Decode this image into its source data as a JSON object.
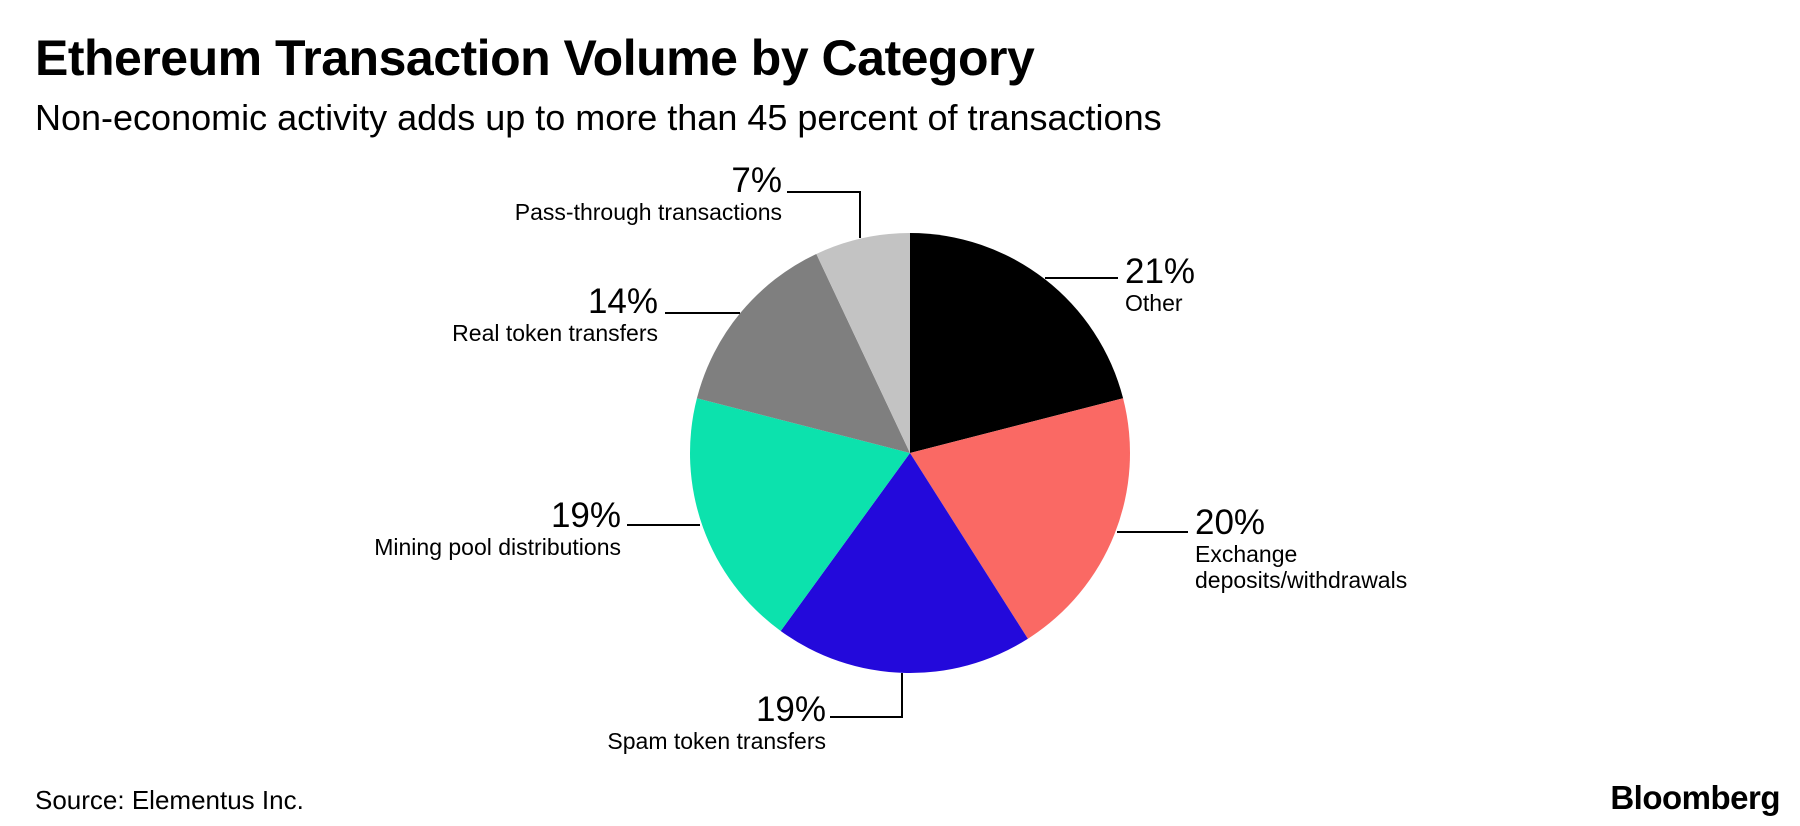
{
  "header": {
    "title": "Ethereum Transaction Volume by Category",
    "subtitle": "Non-economic activity adds up to more than 45 percent of transactions"
  },
  "footer": {
    "source": "Source: Elementus Inc.",
    "brand": "Bloomberg"
  },
  "chart_data": {
    "type": "pie",
    "title": "Ethereum Transaction Volume by Category",
    "subtitle": "Non-economic activity adds up to more than 45 percent of transactions",
    "unit": "percent",
    "series": [
      {
        "name": "Other",
        "value": 21,
        "pct_label": "21%",
        "color": "#000000"
      },
      {
        "name": "Exchange deposits/withdrawals",
        "value": 20,
        "pct_label": "20%",
        "color": "#FA6964"
      },
      {
        "name": "Spam token transfers",
        "value": 19,
        "pct_label": "19%",
        "color": "#2309DB"
      },
      {
        "name": "Mining pool distributions",
        "value": 19,
        "pct_label": "19%",
        "color": "#0CE2AD"
      },
      {
        "name": "Real token transfers",
        "value": 14,
        "pct_label": "14%",
        "color": "#7F7F7F"
      },
      {
        "name": "Pass-through transactions",
        "value": 7,
        "pct_label": "7%",
        "color": "#C3C3C3"
      }
    ],
    "layout_hints": {
      "start_angle": "12-o-clock",
      "direction": "clockwise",
      "legend": "none",
      "labels": "external callouts with leader lines",
      "leader_color": "#000000"
    }
  }
}
